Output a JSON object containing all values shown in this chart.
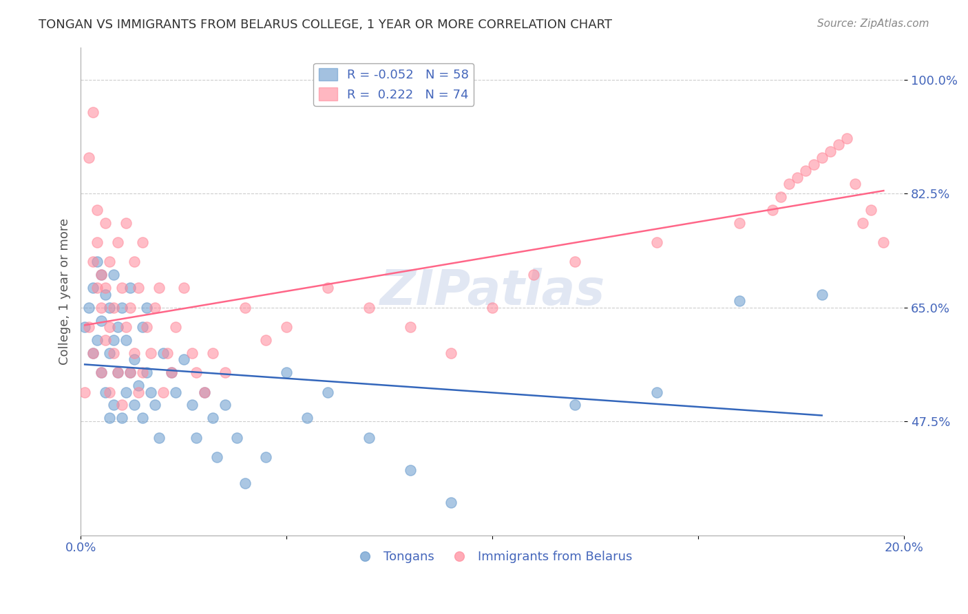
{
  "title": "TONGAN VS IMMIGRANTS FROM BELARUS COLLEGE, 1 YEAR OR MORE CORRELATION CHART",
  "source": "Source: ZipAtlas.com",
  "xlabel_bottom": "",
  "ylabel": "College, 1 year or more",
  "xlim": [
    0.0,
    0.2
  ],
  "ylim": [
    0.3,
    1.05
  ],
  "xticks": [
    0.0,
    0.05,
    0.1,
    0.15,
    0.2
  ],
  "xtick_labels": [
    "0.0%",
    "",
    "",
    "",
    "20.0%"
  ],
  "ytick_labels": [
    "47.5%",
    "65.0%",
    "82.5%",
    "100.0%"
  ],
  "yticks": [
    0.475,
    0.65,
    0.825,
    1.0
  ],
  "watermark": "ZIPatlas",
  "legend_r1": "R = -0.052",
  "legend_n1": "N = 58",
  "legend_r2": "R =  0.222",
  "legend_n2": "N = 74",
  "blue_color": "#6699CC",
  "pink_color": "#FF8899",
  "blue_line_color": "#3366BB",
  "pink_line_color": "#FF6688",
  "axis_label_color": "#4466BB",
  "grid_color": "#CCCCCC",
  "title_color": "#333333",
  "tongans_x": [
    0.001,
    0.002,
    0.003,
    0.003,
    0.004,
    0.004,
    0.005,
    0.005,
    0.005,
    0.006,
    0.006,
    0.007,
    0.007,
    0.007,
    0.008,
    0.008,
    0.008,
    0.009,
    0.009,
    0.01,
    0.01,
    0.011,
    0.011,
    0.012,
    0.012,
    0.013,
    0.013,
    0.014,
    0.015,
    0.015,
    0.016,
    0.016,
    0.017,
    0.018,
    0.019,
    0.02,
    0.022,
    0.023,
    0.025,
    0.027,
    0.028,
    0.03,
    0.032,
    0.033,
    0.035,
    0.038,
    0.04,
    0.045,
    0.05,
    0.055,
    0.06,
    0.07,
    0.08,
    0.09,
    0.12,
    0.14,
    0.16,
    0.18
  ],
  "tongans_y": [
    0.62,
    0.65,
    0.58,
    0.68,
    0.6,
    0.72,
    0.55,
    0.63,
    0.7,
    0.52,
    0.67,
    0.48,
    0.58,
    0.65,
    0.5,
    0.6,
    0.7,
    0.55,
    0.62,
    0.48,
    0.65,
    0.52,
    0.6,
    0.55,
    0.68,
    0.5,
    0.57,
    0.53,
    0.48,
    0.62,
    0.55,
    0.65,
    0.52,
    0.5,
    0.45,
    0.58,
    0.55,
    0.52,
    0.57,
    0.5,
    0.45,
    0.52,
    0.48,
    0.42,
    0.5,
    0.45,
    0.38,
    0.42,
    0.55,
    0.48,
    0.52,
    0.45,
    0.4,
    0.35,
    0.5,
    0.52,
    0.66,
    0.67
  ],
  "belarus_x": [
    0.001,
    0.002,
    0.002,
    0.003,
    0.003,
    0.003,
    0.004,
    0.004,
    0.004,
    0.005,
    0.005,
    0.005,
    0.006,
    0.006,
    0.006,
    0.007,
    0.007,
    0.007,
    0.008,
    0.008,
    0.009,
    0.009,
    0.01,
    0.01,
    0.011,
    0.011,
    0.012,
    0.012,
    0.013,
    0.013,
    0.014,
    0.014,
    0.015,
    0.015,
    0.016,
    0.017,
    0.018,
    0.019,
    0.02,
    0.021,
    0.022,
    0.023,
    0.025,
    0.027,
    0.028,
    0.03,
    0.032,
    0.035,
    0.04,
    0.045,
    0.05,
    0.06,
    0.07,
    0.08,
    0.09,
    0.1,
    0.11,
    0.12,
    0.14,
    0.16,
    0.168,
    0.17,
    0.172,
    0.174,
    0.176,
    0.178,
    0.18,
    0.182,
    0.184,
    0.186,
    0.188,
    0.19,
    0.192,
    0.195
  ],
  "belarus_y": [
    0.52,
    0.62,
    0.88,
    0.58,
    0.72,
    0.95,
    0.68,
    0.75,
    0.8,
    0.55,
    0.65,
    0.7,
    0.6,
    0.68,
    0.78,
    0.52,
    0.62,
    0.72,
    0.58,
    0.65,
    0.55,
    0.75,
    0.5,
    0.68,
    0.62,
    0.78,
    0.55,
    0.65,
    0.58,
    0.72,
    0.52,
    0.68,
    0.55,
    0.75,
    0.62,
    0.58,
    0.65,
    0.68,
    0.52,
    0.58,
    0.55,
    0.62,
    0.68,
    0.58,
    0.55,
    0.52,
    0.58,
    0.55,
    0.65,
    0.6,
    0.62,
    0.68,
    0.65,
    0.62,
    0.58,
    0.65,
    0.7,
    0.72,
    0.75,
    0.78,
    0.8,
    0.82,
    0.84,
    0.85,
    0.86,
    0.87,
    0.88,
    0.89,
    0.9,
    0.91,
    0.84,
    0.78,
    0.8,
    0.75
  ]
}
